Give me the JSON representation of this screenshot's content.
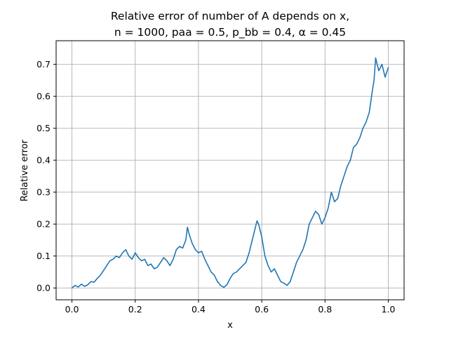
{
  "chart_data": {
    "type": "line",
    "title_line1": "Relative error of number of A depends on x,",
    "title_line2": "n = 1000, paa = 0.5, p_bb = 0.4, α = 0.45",
    "xlabel": "x",
    "ylabel": "Relative error",
    "xlim": [
      -0.05,
      1.05
    ],
    "ylim": [
      -0.037,
      0.774
    ],
    "xticks": [
      0.0,
      0.2,
      0.4,
      0.6,
      0.8,
      1.0
    ],
    "xtick_labels": [
      "0.0",
      "0.2",
      "0.4",
      "0.6",
      "0.8",
      "1.0"
    ],
    "yticks": [
      0.0,
      0.1,
      0.2,
      0.3,
      0.4,
      0.5,
      0.6,
      0.7
    ],
    "ytick_labels": [
      "0.0",
      "0.1",
      "0.2",
      "0.3",
      "0.4",
      "0.5",
      "0.6",
      "0.7"
    ],
    "grid": true,
    "series": [
      {
        "color": "#1f77b4",
        "x": [
          0.0,
          0.01,
          0.02,
          0.03,
          0.04,
          0.05,
          0.06,
          0.07,
          0.08,
          0.09,
          0.1,
          0.11,
          0.12,
          0.13,
          0.14,
          0.15,
          0.16,
          0.17,
          0.18,
          0.19,
          0.2,
          0.21,
          0.22,
          0.23,
          0.24,
          0.25,
          0.26,
          0.27,
          0.28,
          0.29,
          0.3,
          0.31,
          0.32,
          0.33,
          0.34,
          0.35,
          0.36,
          0.365,
          0.37,
          0.38,
          0.39,
          0.4,
          0.41,
          0.42,
          0.43,
          0.44,
          0.45,
          0.46,
          0.47,
          0.48,
          0.49,
          0.5,
          0.51,
          0.52,
          0.53,
          0.54,
          0.55,
          0.56,
          0.57,
          0.58,
          0.585,
          0.59,
          0.6,
          0.61,
          0.62,
          0.63,
          0.64,
          0.65,
          0.66,
          0.67,
          0.68,
          0.69,
          0.7,
          0.71,
          0.72,
          0.73,
          0.74,
          0.75,
          0.76,
          0.77,
          0.78,
          0.79,
          0.8,
          0.81,
          0.82,
          0.83,
          0.84,
          0.85,
          0.86,
          0.87,
          0.88,
          0.89,
          0.9,
          0.91,
          0.92,
          0.93,
          0.94,
          0.95,
          0.955,
          0.96,
          0.97,
          0.98,
          0.99,
          1.0
        ],
        "y": [
          0.0,
          0.008,
          0.003,
          0.012,
          0.005,
          0.01,
          0.02,
          0.018,
          0.03,
          0.04,
          0.055,
          0.07,
          0.085,
          0.09,
          0.1,
          0.095,
          0.11,
          0.12,
          0.1,
          0.09,
          0.11,
          0.095,
          0.085,
          0.09,
          0.07,
          0.075,
          0.06,
          0.065,
          0.08,
          0.095,
          0.085,
          0.07,
          0.09,
          0.12,
          0.13,
          0.125,
          0.15,
          0.19,
          0.17,
          0.14,
          0.12,
          0.11,
          0.115,
          0.09,
          0.07,
          0.05,
          0.04,
          0.02,
          0.008,
          0.002,
          0.01,
          0.03,
          0.045,
          0.05,
          0.06,
          0.07,
          0.08,
          0.11,
          0.15,
          0.19,
          0.21,
          0.2,
          0.16,
          0.1,
          0.07,
          0.05,
          0.06,
          0.04,
          0.02,
          0.015,
          0.008,
          0.02,
          0.05,
          0.08,
          0.1,
          0.12,
          0.15,
          0.2,
          0.22,
          0.24,
          0.23,
          0.2,
          0.22,
          0.25,
          0.3,
          0.27,
          0.28,
          0.32,
          0.35,
          0.38,
          0.4,
          0.44,
          0.45,
          0.47,
          0.5,
          0.52,
          0.55,
          0.62,
          0.65,
          0.72,
          0.68,
          0.7,
          0.66,
          0.69
        ]
      }
    ]
  }
}
